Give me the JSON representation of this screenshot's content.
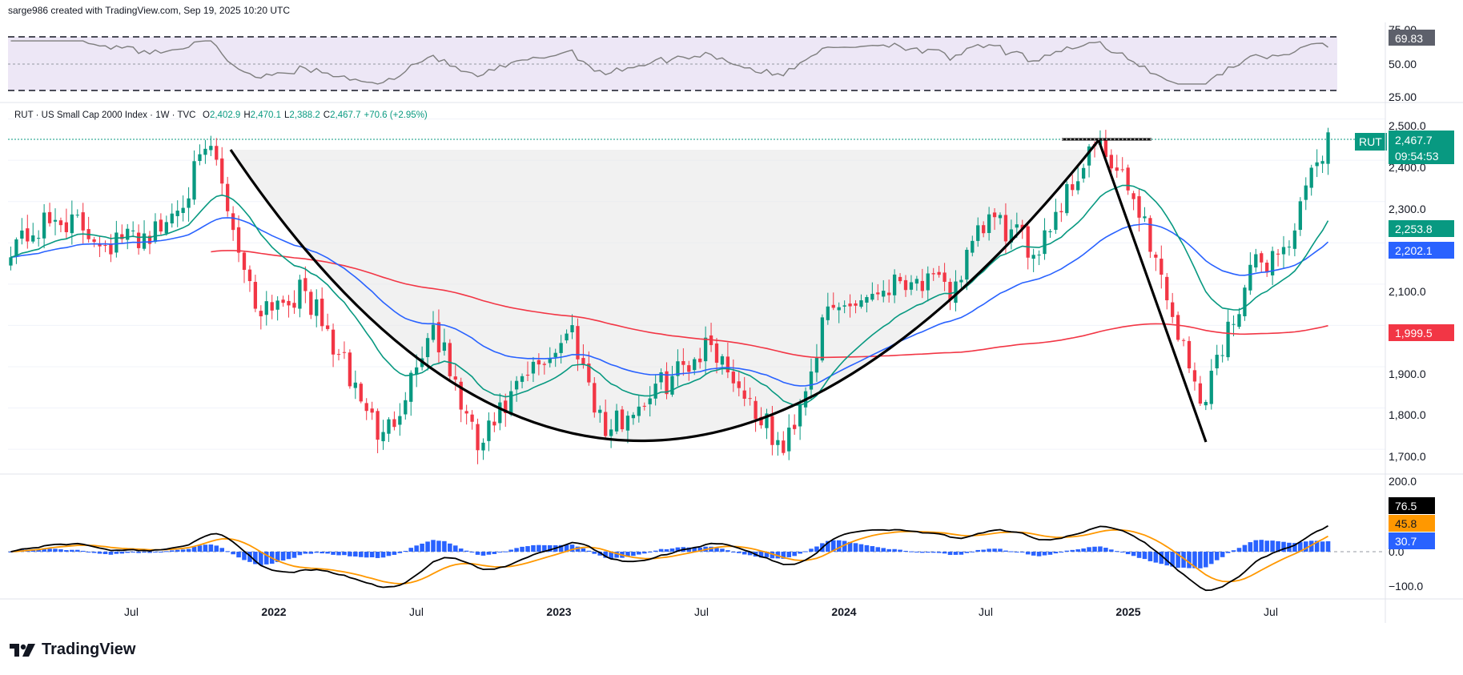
{
  "header": {
    "credit": "sarge986 created with TradingView.com, Sep 19, 2025 10:20 UTC"
  },
  "brand": {
    "name": "TradingView"
  },
  "colors": {
    "up": "#089981",
    "down": "#f23645",
    "ema_fast": "#089981",
    "ema_mid": "#2962ff",
    "ema_slow": "#f23645",
    "rsi_line": "#7e7e7e",
    "rsi_band": "#ede7f6",
    "macd_line": "#000000",
    "signal_line": "#ff9800",
    "hist": "#2962ff",
    "pattern_fill": "#e8e8e8"
  },
  "main": {
    "legend": {
      "symbol": "RUT · US Small Cap 2000 Index · 1W · TVC",
      "o_label": "O",
      "o_value": "2,402.9",
      "h_label": "H",
      "h_value": "2,470.1",
      "l_label": "L",
      "l_value": "2,388.2",
      "c_label": "C",
      "c_value": "2,467.7",
      "change": "+70.6 (+2.95%)"
    },
    "y_ticks": [
      "2,500.0",
      "2,400.0",
      "2,300.0",
      "2,100.0",
      "1,900.0",
      "1,800.0",
      "1,700.0"
    ],
    "price_badges": {
      "symbol": "RUT",
      "price": "2,467.7",
      "countdown": "09:54:53",
      "ema_fast": "2,253.8",
      "ema_mid": "2,202.1",
      "ema_slow": "1,999.5"
    }
  },
  "rsi": {
    "y_ticks": [
      "75.00",
      "50.00",
      "25.00"
    ],
    "value": "69.83"
  },
  "macd": {
    "y_ticks": [
      "200.0",
      "0.0",
      "−100.0"
    ],
    "values": {
      "macd": "76.5",
      "signal": "45.8",
      "hist": "30.7"
    }
  },
  "x_axis": {
    "ticks": [
      "Jul",
      "2022",
      "Jul",
      "2023",
      "Jul",
      "2024",
      "Jul",
      "2025",
      "Jul"
    ]
  },
  "chart_data": {
    "type": "candlestick",
    "symbol": "RUT",
    "timeframe": "1W",
    "ylim": [
      1640,
      2540
    ],
    "ema_last": {
      "fast": 2253.8,
      "mid": 2202.1,
      "slow": 1999.5
    },
    "anchors": [
      [
        "2021-03-01",
        2200
      ],
      [
        "2021-05-03",
        2260
      ],
      [
        "2021-07-05",
        2200
      ],
      [
        "2021-09-06",
        2230
      ],
      [
        "2021-11-08",
        2430
      ],
      [
        "2022-01-03",
        2050
      ],
      [
        "2022-03-07",
        2080
      ],
      [
        "2022-06-13",
        1720
      ],
      [
        "2022-08-15",
        2000
      ],
      [
        "2022-10-10",
        1700
      ],
      [
        "2022-12-05",
        1860
      ],
      [
        "2023-02-06",
        1990
      ],
      [
        "2023-03-20",
        1740
      ],
      [
        "2023-07-31",
        1960
      ],
      [
        "2023-10-30",
        1690
      ],
      [
        "2023-12-25",
        2030
      ],
      [
        "2024-04-01",
        2120
      ],
      [
        "2024-05-27",
        2080
      ],
      [
        "2024-07-15",
        2260
      ],
      [
        "2024-09-09",
        2180
      ],
      [
        "2024-11-25",
        2440
      ],
      [
        "2025-01-20",
        2290
      ],
      [
        "2025-04-07",
        1810
      ],
      [
        "2025-06-09",
        2130
      ],
      [
        "2025-07-28",
        2200
      ],
      [
        "2025-09-15",
        2467.7
      ]
    ]
  }
}
